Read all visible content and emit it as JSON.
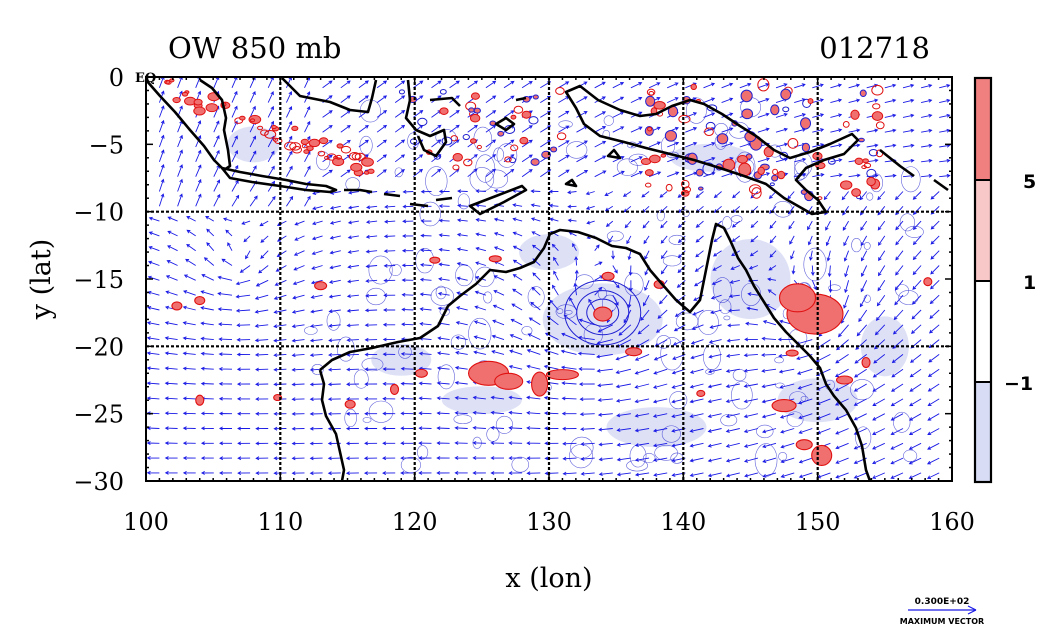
{
  "chart_data": {
    "type": "heatmap",
    "title": "OW 850 mb",
    "date_label": "012718",
    "xlabel": "x (lon)",
    "ylabel": "y (lat)",
    "xlim": [
      100,
      160
    ],
    "ylim": [
      -30,
      0
    ],
    "x_ticks": [
      "100",
      "110",
      "120",
      "130",
      "140",
      "150",
      "160"
    ],
    "y_ticks": [
      "0",
      "−5",
      "−10",
      "−15",
      "−20",
      "−25",
      "−30"
    ],
    "y_tick_values": [
      0,
      -5,
      -10,
      -15,
      -20,
      -25,
      -30
    ],
    "x_tick_values": [
      100,
      110,
      120,
      130,
      140,
      150,
      160
    ],
    "corner_label": "EQ",
    "grid": true,
    "grid_lon": [
      110,
      120,
      130,
      140,
      150
    ],
    "grid_lat": [
      -10,
      -20
    ],
    "legend": {
      "placement": "right",
      "levels": [
        "5",
        "1",
        "−1"
      ],
      "level_values": [
        5,
        1,
        -1
      ],
      "colors": [
        "#f08080",
        "#f8c8c8",
        "#ffffff",
        "#d8dcf4"
      ]
    },
    "vector_key": {
      "value": "0.300E+02",
      "label": "MAXIMUM VECTOR"
    },
    "colors": {
      "coast": "#000000",
      "vectors": "#1a1ae6",
      "positive_fill": "#f07070",
      "positive_line": "#e01010",
      "negative_fill": "#d8dcf4"
    },
    "features": [
      {
        "name": "cyclone-gulf-of-carpentaria-area",
        "lon": 134,
        "lat": -17.5,
        "sign": "negative"
      },
      {
        "name": "cyclone-coral-sea",
        "lon": 149.5,
        "lat": -17.5,
        "sign": "positive"
      },
      {
        "name": "blob-north-west-shelf",
        "lon": 125,
        "lat": -22,
        "sign": "positive"
      }
    ]
  }
}
